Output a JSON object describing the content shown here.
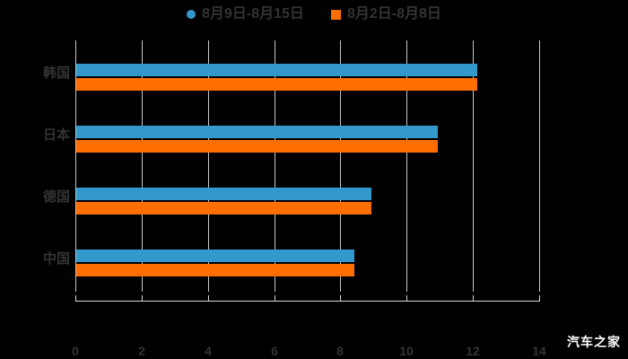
{
  "watermark": "汽车之家",
  "colors": {
    "background": "#000000",
    "series_blue": "#3399cc",
    "series_orange": "#ff6e00",
    "text": "#333333",
    "gridline": "#c8c8c8",
    "axis_line": "#d8d8d8",
    "watermark_text": "#ffffff"
  },
  "chart_data": {
    "type": "bar",
    "orientation": "horizontal",
    "title": "",
    "categories": [
      "韩国",
      "日本",
      "德国",
      "中国"
    ],
    "series": [
      {
        "name": "8月9日-8月15日",
        "color": "#3399cc",
        "marker": "circle",
        "values": [
          12.1,
          10.9,
          8.9,
          8.4
        ]
      },
      {
        "name": "8月2日-8月8日",
        "color": "#ff6e00",
        "marker": "square",
        "values": [
          12.1,
          10.9,
          8.9,
          8.4
        ]
      }
    ],
    "xlabel": "",
    "ylabel": "",
    "xlim": [
      0,
      14
    ],
    "xticks": [
      0,
      2,
      4,
      6,
      8,
      10,
      12,
      14
    ],
    "grid": "vertical",
    "legend_position": "top"
  }
}
